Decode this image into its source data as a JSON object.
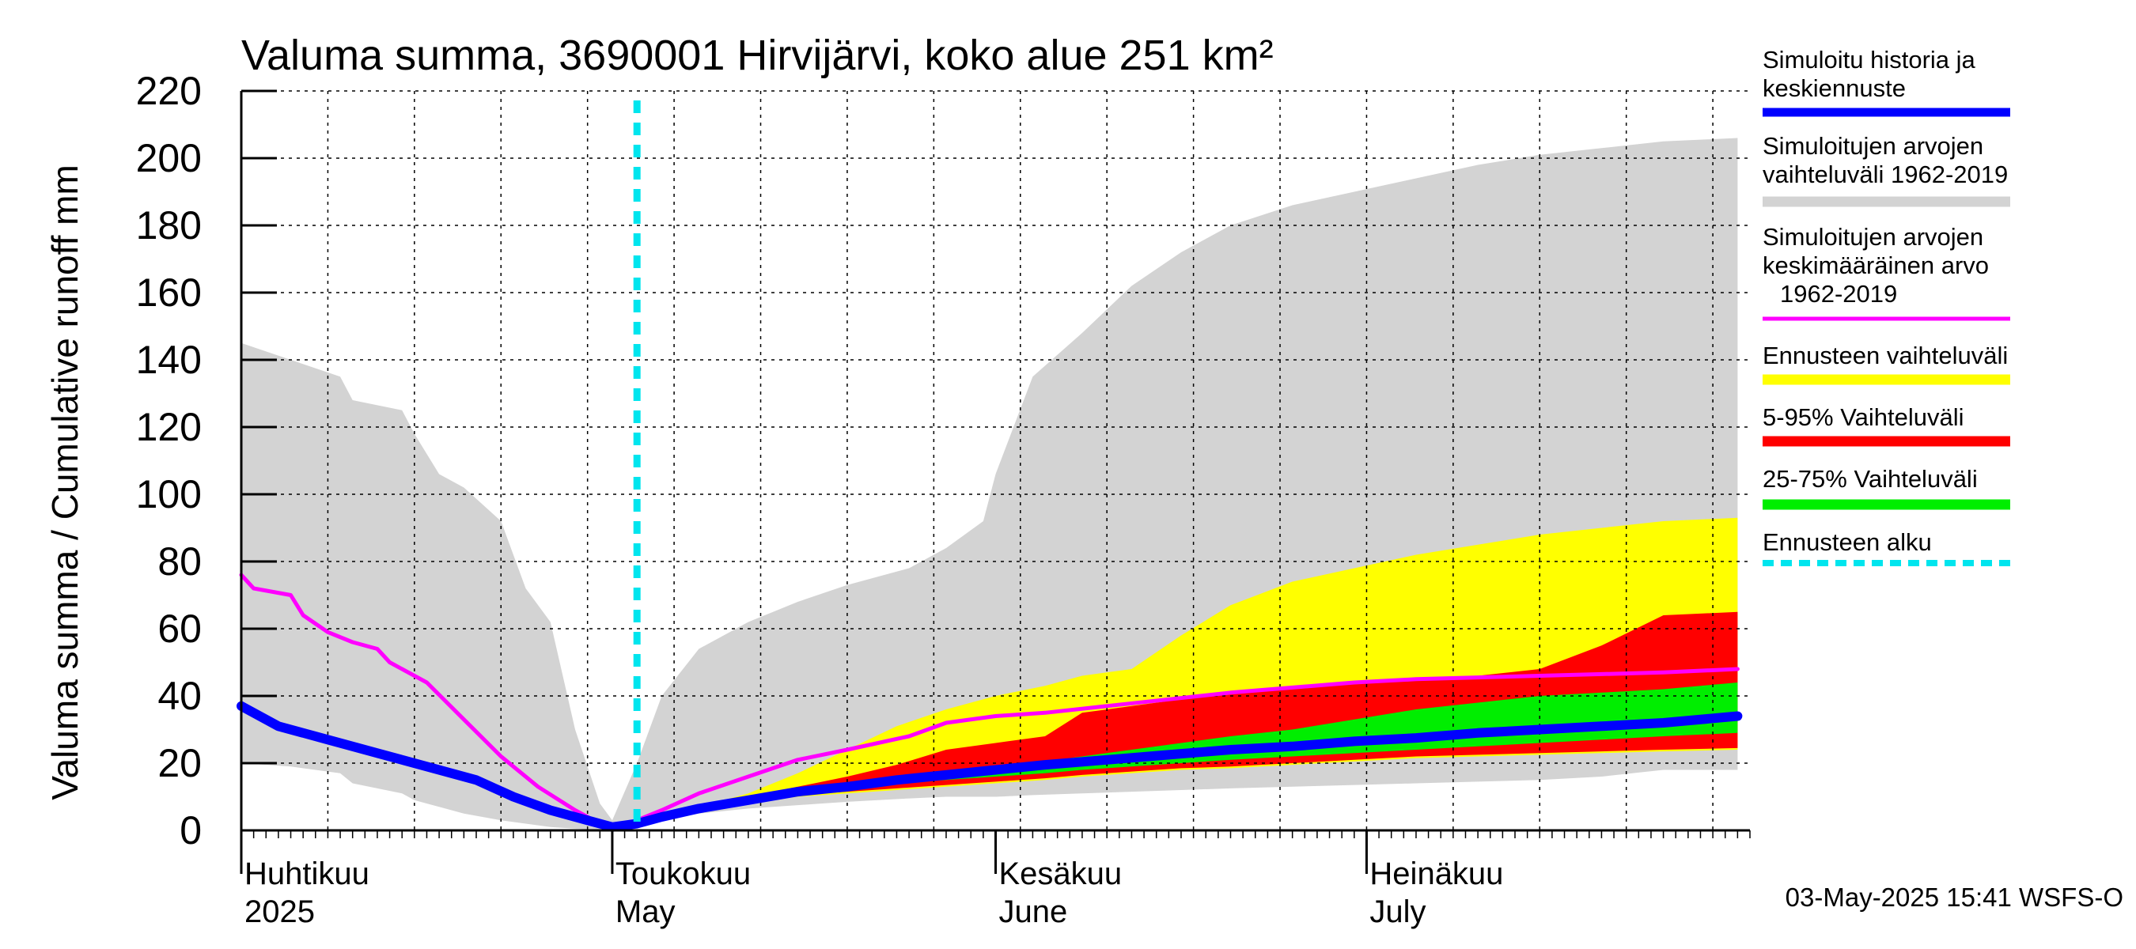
{
  "chart_data": {
    "type": "area",
    "title": "Valuma summa, 3690001 Hirvijärvi, koko alue 251 km²",
    "ylabel": "Valuma summa / Cumulative runoff    mm",
    "ylim": [
      0,
      220
    ],
    "yticks": [
      0,
      20,
      40,
      60,
      80,
      100,
      120,
      140,
      160,
      180,
      200,
      220
    ],
    "xlim": [
      "2025-04-01",
      "2025-07-31"
    ],
    "x_axis_labels": [
      {
        "date": "2025-04-01",
        "line1": "Huhtikuu",
        "line2": "2025"
      },
      {
        "date": "2025-05-01",
        "line1": "Toukokuu",
        "line2": "May"
      },
      {
        "date": "2025-06-01",
        "line1": "Kesäkuu",
        "line2": "June"
      },
      {
        "date": "2025-07-01",
        "line1": "Heinäkuu",
        "line2": "July"
      }
    ],
    "grid": true,
    "legend_placement": "right",
    "forecast_start": "2025-05-03",
    "timestamp": "03-May-2025 15:41 WSFS-O",
    "legend": [
      {
        "label": "Simuloitu historia ja keskiennuste",
        "color": "#0000ff",
        "style": "line"
      },
      {
        "label": "Simuloitujen arvojen vaihteluväli 1962-2019",
        "color": "#d3d3d3",
        "style": "band"
      },
      {
        "label": "Simuloitujen arvojen keskimääräinen arvo 1962-2019",
        "color": "#ff00ff",
        "style": "line"
      },
      {
        "label": "Ennusteen vaihteluväli",
        "color": "#ffff00",
        "style": "band"
      },
      {
        "label": "5-95% Vaihteluväli",
        "color": "#ff0000",
        "style": "band"
      },
      {
        "label": "25-75% Vaihteluväli",
        "color": "#00ee00",
        "style": "band"
      },
      {
        "label": "Ennusteen alku",
        "color": "#00e5ee",
        "style": "dashed"
      }
    ],
    "series": [
      {
        "key": "hist_range",
        "band": true,
        "color": "#d3d3d3",
        "x": [
          "2025-04-01",
          "2025-04-05",
          "2025-04-09",
          "2025-04-10",
          "2025-04-14",
          "2025-04-15",
          "2025-04-17",
          "2025-04-19",
          "2025-04-22",
          "2025-04-24",
          "2025-04-26",
          "2025-04-28",
          "2025-04-30",
          "2025-05-01",
          "2025-05-03",
          "2025-05-05",
          "2025-05-08",
          "2025-05-12",
          "2025-05-16",
          "2025-05-20",
          "2025-05-25",
          "2025-05-28",
          "2025-05-31",
          "2025-06-01",
          "2025-06-04",
          "2025-06-08",
          "2025-06-12",
          "2025-06-16",
          "2025-06-20",
          "2025-06-25",
          "2025-06-30",
          "2025-07-05",
          "2025-07-10",
          "2025-07-15",
          "2025-07-20",
          "2025-07-25",
          "2025-07-31"
        ],
        "upper": [
          145,
          140,
          135,
          128,
          125,
          118,
          106,
          102,
          92,
          72,
          62,
          30,
          8,
          3,
          20,
          40,
          54,
          62,
          68,
          73,
          78,
          84,
          92,
          106,
          135,
          148,
          162,
          172,
          180,
          186,
          190,
          194,
          198,
          201,
          203,
          205,
          206
        ],
        "lower": [
          20,
          19,
          17,
          14,
          11,
          9,
          7,
          5,
          3,
          2,
          1,
          0.5,
          0.2,
          0.3,
          1.5,
          3,
          5,
          6.5,
          7.5,
          8.5,
          9.5,
          10,
          10,
          10,
          10.5,
          11,
          11.5,
          12,
          12.5,
          13,
          13.5,
          14,
          14.5,
          15,
          16,
          18,
          18
        ]
      },
      {
        "key": "fc_range",
        "band": true,
        "color": "#ffff00",
        "x": [
          "2025-05-03",
          "2025-05-05",
          "2025-05-08",
          "2025-05-12",
          "2025-05-16",
          "2025-05-20",
          "2025-05-24",
          "2025-05-28",
          "2025-06-01",
          "2025-06-05",
          "2025-06-08",
          "2025-06-12",
          "2025-06-16",
          "2025-06-20",
          "2025-06-25",
          "2025-06-30",
          "2025-07-05",
          "2025-07-10",
          "2025-07-15",
          "2025-07-20",
          "2025-07-25",
          "2025-07-31"
        ],
        "upper": [
          1,
          3.5,
          7,
          11,
          17,
          24,
          31,
          36,
          40,
          43,
          46,
          48,
          58,
          67,
          74,
          78,
          82,
          85,
          88,
          90,
          92,
          93
        ],
        "lower": [
          1,
          3,
          5.5,
          8,
          10,
          11,
          12,
          13,
          14,
          15,
          16,
          17,
          18,
          18.5,
          19.5,
          20.5,
          21.5,
          22,
          22.5,
          23,
          23.5,
          24
        ]
      },
      {
        "key": "p5_95",
        "band": true,
        "color": "#ff0000",
        "x": [
          "2025-05-03",
          "2025-05-05",
          "2025-05-08",
          "2025-05-12",
          "2025-05-16",
          "2025-05-20",
          "2025-05-24",
          "2025-05-28",
          "2025-06-01",
          "2025-06-05",
          "2025-06-08",
          "2025-06-12",
          "2025-06-16",
          "2025-06-20",
          "2025-06-25",
          "2025-06-30",
          "2025-07-05",
          "2025-07-10",
          "2025-07-15",
          "2025-07-20",
          "2025-07-25",
          "2025-07-31"
        ],
        "upper": [
          1,
          3,
          6.5,
          10,
          13,
          16,
          19.5,
          24,
          26,
          28,
          35,
          37,
          39,
          41,
          43,
          44,
          45,
          46,
          48,
          55,
          64,
          65
        ],
        "lower": [
          1,
          3,
          5.5,
          8.5,
          10.5,
          11.5,
          12.5,
          13.5,
          14.5,
          15.5,
          16.5,
          17.5,
          18.5,
          19,
          20,
          21,
          22,
          22.5,
          23,
          23.5,
          24,
          24.5
        ]
      },
      {
        "key": "p25_75",
        "band": true,
        "color": "#00ee00",
        "x": [
          "2025-05-03",
          "2025-05-05",
          "2025-05-08",
          "2025-05-12",
          "2025-05-16",
          "2025-05-20",
          "2025-05-24",
          "2025-05-28",
          "2025-06-01",
          "2025-06-05",
          "2025-06-08",
          "2025-06-12",
          "2025-06-16",
          "2025-06-20",
          "2025-06-25",
          "2025-06-30",
          "2025-07-05",
          "2025-07-10",
          "2025-07-15",
          "2025-07-20",
          "2025-07-25",
          "2025-07-31"
        ],
        "upper": [
          1,
          3,
          6,
          9,
          11.5,
          13.5,
          15.5,
          17.5,
          19,
          20.5,
          22,
          24,
          26,
          28,
          30,
          33,
          36,
          38,
          40,
          41,
          42,
          44
        ],
        "lower": [
          1,
          3,
          5.5,
          8.5,
          11,
          12.5,
          14,
          15,
          16,
          17,
          18,
          19,
          20,
          21,
          22,
          23,
          24,
          25,
          26,
          27,
          28,
          29
        ]
      },
      {
        "key": "hist_mean",
        "band": false,
        "color": "#ff00ff",
        "width": 5,
        "x": [
          "2025-04-01",
          "2025-04-02",
          "2025-04-05",
          "2025-04-06",
          "2025-04-08",
          "2025-04-10",
          "2025-04-12",
          "2025-04-13",
          "2025-04-16",
          "2025-04-19",
          "2025-04-22",
          "2025-04-25",
          "2025-04-28",
          "2025-04-30",
          "2025-05-01",
          "2025-05-02",
          "2025-05-05",
          "2025-05-08",
          "2025-05-12",
          "2025-05-16",
          "2025-05-20",
          "2025-05-25",
          "2025-05-28",
          "2025-06-01",
          "2025-06-05",
          "2025-06-10",
          "2025-06-15",
          "2025-06-20",
          "2025-06-25",
          "2025-06-30",
          "2025-07-05",
          "2025-07-10",
          "2025-07-15",
          "2025-07-20",
          "2025-07-25",
          "2025-07-31"
        ],
        "values": [
          76,
          72,
          70,
          64,
          59,
          56,
          54,
          50,
          44,
          33,
          22,
          13,
          6,
          2,
          0.5,
          1.5,
          6,
          11,
          16,
          21,
          24,
          28,
          32,
          34,
          35,
          37,
          39,
          41,
          42.5,
          44,
          45,
          45.5,
          46,
          46.5,
          47,
          48
        ]
      },
      {
        "key": "sim_mean",
        "band": false,
        "color": "#0000ff",
        "width": 12,
        "x": [
          "2025-04-01",
          "2025-04-04",
          "2025-04-08",
          "2025-04-12",
          "2025-04-16",
          "2025-04-20",
          "2025-04-23",
          "2025-04-26",
          "2025-04-29",
          "2025-05-01",
          "2025-05-03",
          "2025-05-05",
          "2025-05-08",
          "2025-05-12",
          "2025-05-16",
          "2025-05-20",
          "2025-05-24",
          "2025-05-28",
          "2025-06-01",
          "2025-06-05",
          "2025-06-10",
          "2025-06-15",
          "2025-06-20",
          "2025-06-25",
          "2025-06-30",
          "2025-07-05",
          "2025-07-10",
          "2025-07-15",
          "2025-07-20",
          "2025-07-25",
          "2025-07-31"
        ],
        "values": [
          37,
          31,
          27,
          23,
          19,
          15,
          10,
          6,
          3,
          1,
          2,
          4,
          6.5,
          9,
          11.5,
          13,
          15,
          16.5,
          18,
          19.5,
          21,
          22.5,
          24,
          25,
          26.5,
          27.5,
          29,
          30,
          31,
          32,
          34
        ]
      }
    ]
  }
}
